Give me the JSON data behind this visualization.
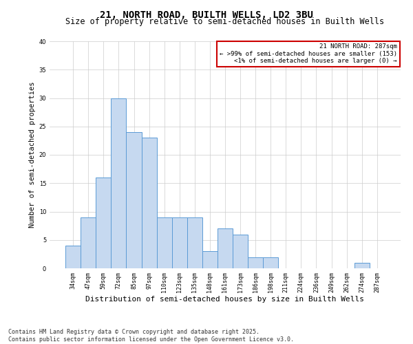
{
  "title": "21, NORTH ROAD, BUILTH WELLS, LD2 3BU",
  "subtitle": "Size of property relative to semi-detached houses in Builth Wells",
  "xlabel": "Distribution of semi-detached houses by size in Builth Wells",
  "ylabel": "Number of semi-detached properties",
  "bar_labels": [
    "34sqm",
    "47sqm",
    "59sqm",
    "72sqm",
    "85sqm",
    "97sqm",
    "110sqm",
    "123sqm",
    "135sqm",
    "148sqm",
    "161sqm",
    "173sqm",
    "186sqm",
    "198sqm",
    "211sqm",
    "224sqm",
    "236sqm",
    "249sqm",
    "262sqm",
    "274sqm",
    "287sqm"
  ],
  "bar_values": [
    4,
    9,
    16,
    30,
    24,
    23,
    9,
    9,
    9,
    3,
    7,
    6,
    2,
    2,
    0,
    0,
    0,
    0,
    0,
    1,
    0
  ],
  "bar_color": "#c6d9f0",
  "bar_edge_color": "#5b9bd5",
  "annotation_title": "21 NORTH ROAD: 287sqm",
  "annotation_line1": "← >99% of semi-detached houses are smaller (153)",
  "annotation_line2": "<1% of semi-detached houses are larger (0) →",
  "annotation_box_color": "#ffffff",
  "annotation_box_edge": "#cc0000",
  "ylim": [
    0,
    40
  ],
  "yticks": [
    0,
    5,
    10,
    15,
    20,
    25,
    30,
    35,
    40
  ],
  "footer_line1": "Contains HM Land Registry data © Crown copyright and database right 2025.",
  "footer_line2": "Contains public sector information licensed under the Open Government Licence v3.0.",
  "grid_color": "#cccccc",
  "bg_color": "#ffffff",
  "title_fontsize": 10,
  "subtitle_fontsize": 8.5,
  "xlabel_fontsize": 8,
  "ylabel_fontsize": 7.5,
  "tick_fontsize": 6,
  "annotation_fontsize": 6.5,
  "footer_fontsize": 6
}
